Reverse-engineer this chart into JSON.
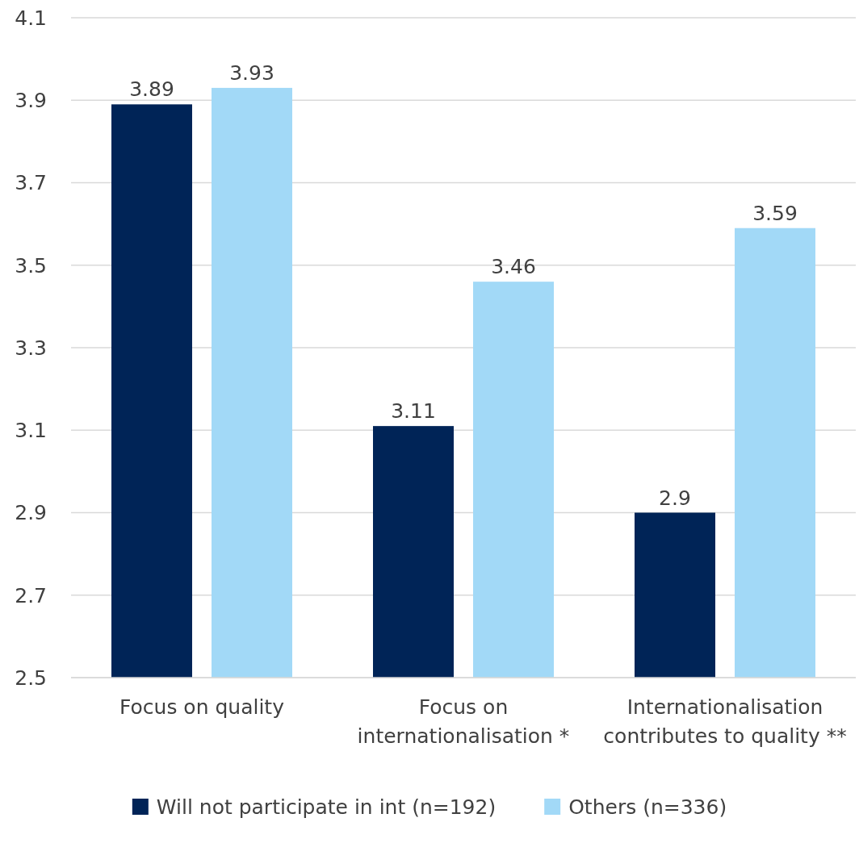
{
  "chart_data": {
    "type": "bar",
    "categories": [
      "Focus on quality",
      "Focus on internationalisation *",
      "Internationalisation contributes to quality **"
    ],
    "series": [
      {
        "name": "Will not participate in int (n=192)",
        "color": "#002457",
        "values": [
          3.89,
          3.11,
          2.9
        ]
      },
      {
        "name": "Others (n=336)",
        "color": "#a2d9f7",
        "values": [
          3.93,
          3.46,
          3.59
        ]
      }
    ],
    "ylim": [
      2.5,
      4.1
    ],
    "yticks": [
      2.5,
      2.7,
      2.9,
      3.1,
      3.3,
      3.5,
      3.7,
      3.9,
      4.1
    ],
    "grid": "y",
    "data_labels": true,
    "legend": "bottom"
  }
}
